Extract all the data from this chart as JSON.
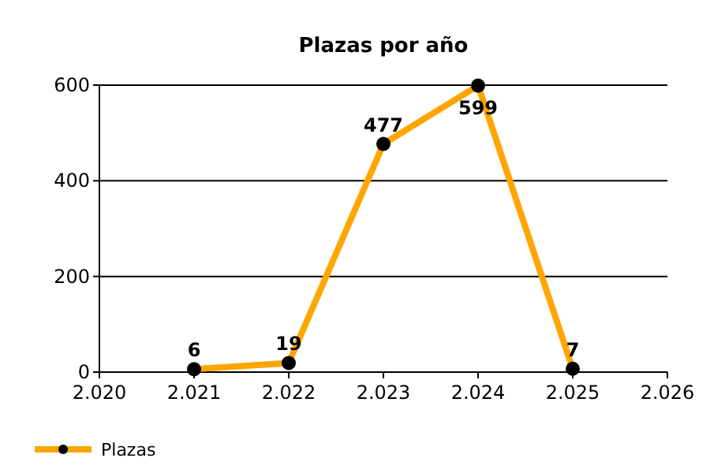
{
  "chart_data": {
    "type": "line",
    "title": "Plazas por año",
    "x": [
      2021,
      2022,
      2023,
      2024,
      2025
    ],
    "series": [
      {
        "name": "Plazas",
        "color": "#ffa500",
        "values": [
          6,
          19,
          477,
          599,
          7
        ]
      }
    ],
    "xlim": [
      2020,
      2026
    ],
    "xticks": [
      {
        "value": 2020,
        "label": "2.020"
      },
      {
        "value": 2021,
        "label": "2.021"
      },
      {
        "value": 2022,
        "label": "2.022"
      },
      {
        "value": 2023,
        "label": "2.023"
      },
      {
        "value": 2024,
        "label": "2.024"
      },
      {
        "value": 2025,
        "label": "2.025"
      },
      {
        "value": 2026,
        "label": "2.026"
      }
    ],
    "ylim": [
      0,
      600
    ],
    "yticks": [
      0,
      200,
      400,
      600
    ],
    "grid": "y",
    "legend": "bottom left",
    "marker": "circle",
    "line_style": "solid",
    "data_labels": true
  }
}
